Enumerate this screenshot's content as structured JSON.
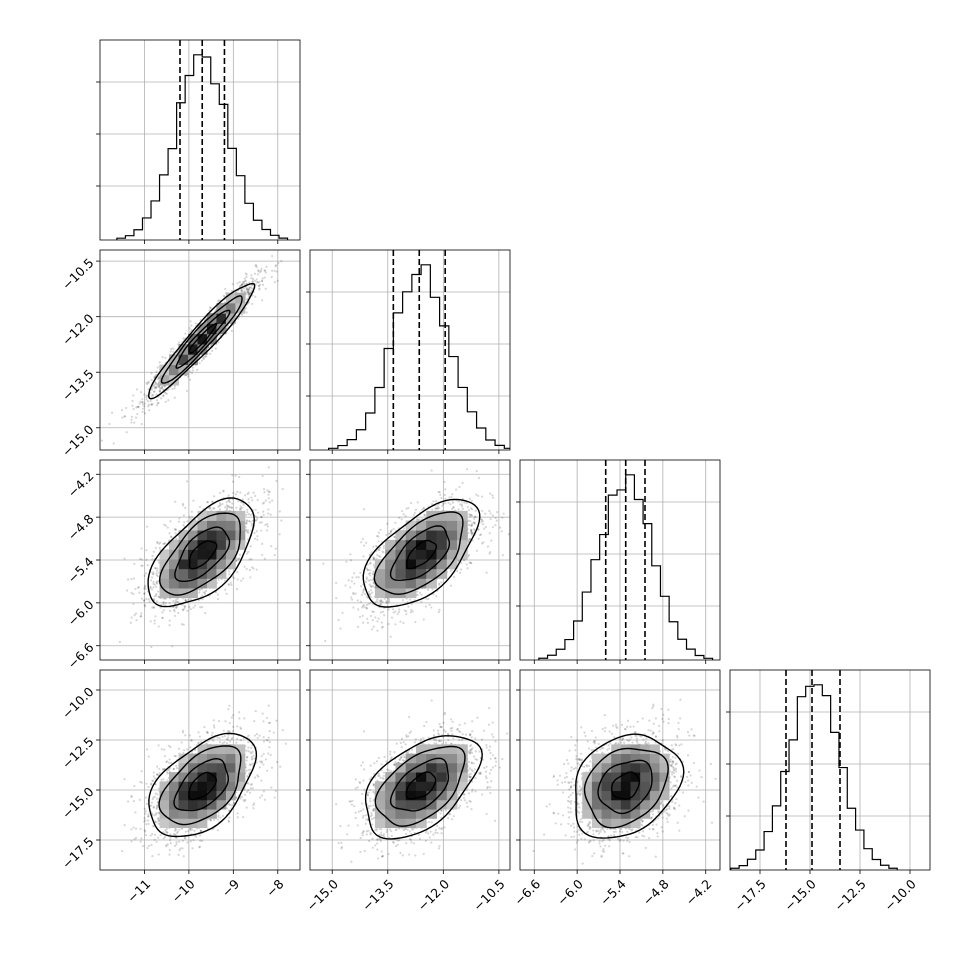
{
  "chart_data": {
    "type": "corner",
    "title": "",
    "params": [
      {
        "range": [
          -12,
          -7.5
        ],
        "ticks": [
          -11,
          -10,
          -9,
          -8
        ],
        "tick_labels": [
          "−11",
          "−10",
          "−9",
          "−8"
        ],
        "mean": -9.7,
        "sd": 0.6,
        "quantiles": [
          -10.2,
          -9.7,
          -9.2
        ]
      },
      {
        "range": [
          -15.6,
          -10.2
        ],
        "ticks": [
          -15.0,
          -13.5,
          -12.0,
          -10.5
        ],
        "tick_labels": [
          "−15.0",
          "−13.5",
          "−12.0",
          "−10.5"
        ],
        "mean": -12.6,
        "sd": 0.78,
        "quantiles": [
          -13.35,
          -12.65,
          -11.95
        ]
      },
      {
        "range": [
          -6.8,
          -4.0
        ],
        "ticks": [
          -6.6,
          -6.0,
          -5.4,
          -4.8,
          -4.2
        ],
        "tick_labels": [
          "−6.6",
          "−6.0",
          "−5.4",
          "−4.8",
          "−4.2"
        ],
        "mean": -5.32,
        "sd": 0.38,
        "quantiles": [
          -5.6,
          -5.32,
          -5.05
        ]
      },
      {
        "range": [
          -19.0,
          -9.0
        ],
        "ticks": [
          -17.5,
          -15.0,
          -12.5,
          -10.0
        ],
        "tick_labels": [
          "−17.5",
          "−15.0",
          "−12.5",
          "−10.0"
        ],
        "mean": -14.8,
        "sd": 1.3,
        "quantiles": [
          -16.2,
          -14.9,
          -13.5
        ]
      }
    ],
    "correlation": [
      [
        1.0,
        0.95,
        0.6,
        0.5
      ],
      [
        0.95,
        1.0,
        0.6,
        0.5
      ],
      [
        0.6,
        0.6,
        1.0,
        0.25
      ],
      [
        0.5,
        0.5,
        0.25,
        1.0
      ]
    ],
    "histogram_bins": 20,
    "contour_levels": [
      0.12,
      0.39,
      0.68,
      0.86
    ],
    "grid": true,
    "colors": {
      "points": "#000000",
      "contour": "#000000",
      "frame": "#000000",
      "grid": "#b0b0b0"
    }
  }
}
